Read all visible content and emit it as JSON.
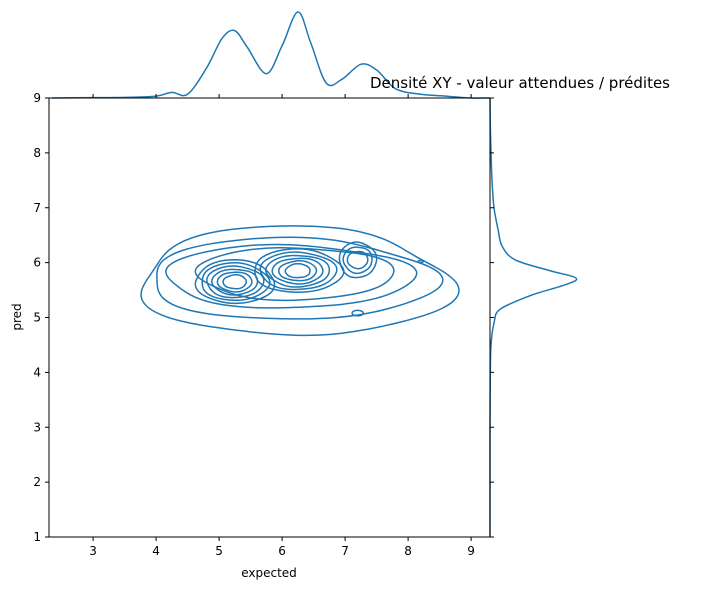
{
  "chart_data": {
    "type": "joint-kde",
    "title": "Densité XY - valeur attendues / prédites",
    "xlabel": "expected",
    "ylabel": "pred",
    "xlim": [
      2.3,
      9.3
    ],
    "ylim": [
      1,
      9
    ],
    "x_ticks": [
      3,
      4,
      5,
      6,
      7,
      8,
      9
    ],
    "y_ticks": [
      1,
      2,
      3,
      4,
      5,
      6,
      7,
      8,
      9
    ],
    "line_color": "#1f77b4",
    "grid": false,
    "modes": [
      {
        "x": 5.25,
        "y": 5.65,
        "weight": 1.0
      },
      {
        "x": 6.25,
        "y": 5.85,
        "weight": 1.15
      },
      {
        "x": 7.2,
        "y": 6.05,
        "weight": 0.55
      }
    ],
    "marginal_x": {
      "x": [
        2.35,
        3.0,
        3.5,
        4.0,
        4.25,
        4.5,
        4.8,
        5.05,
        5.25,
        5.45,
        5.75,
        6.0,
        6.25,
        6.45,
        6.7,
        6.95,
        7.25,
        7.5,
        7.8,
        8.2,
        8.6,
        9.0,
        9.3
      ],
      "density": [
        0.0,
        0.002,
        0.003,
        0.01,
        0.03,
        0.02,
        0.16,
        0.32,
        0.36,
        0.27,
        0.13,
        0.28,
        0.46,
        0.3,
        0.08,
        0.1,
        0.18,
        0.15,
        0.05,
        0.02,
        0.01,
        0.0,
        0.0
      ]
    },
    "marginal_y": {
      "y": [
        1.0,
        2.0,
        3.0,
        4.0,
        4.5,
        4.9,
        5.15,
        5.4,
        5.6,
        5.72,
        5.85,
        6.05,
        6.3,
        6.6,
        7.0,
        7.5,
        8.0,
        8.5,
        9.0
      ],
      "density": [
        0.0,
        0.0,
        0.0,
        0.003,
        0.01,
        0.04,
        0.1,
        0.4,
        0.75,
        0.85,
        0.6,
        0.25,
        0.12,
        0.08,
        0.04,
        0.02,
        0.01,
        0.003,
        0.0
      ]
    }
  }
}
